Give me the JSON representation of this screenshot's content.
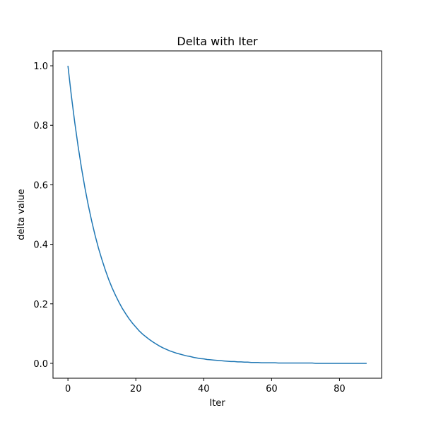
{
  "chart_data": {
    "type": "line",
    "title": "Delta with Iter",
    "xlabel": "Iter",
    "ylabel": "delta value",
    "x": [
      0,
      1,
      2,
      3,
      4,
      5,
      6,
      7,
      8,
      9,
      10,
      11,
      12,
      13,
      14,
      15,
      16,
      17,
      18,
      19,
      20,
      21,
      22,
      23,
      24,
      25,
      26,
      27,
      28,
      29,
      30,
      31,
      32,
      33,
      34,
      35,
      36,
      37,
      38,
      39,
      40,
      41,
      42,
      43,
      44,
      45,
      46,
      47,
      48,
      49,
      50,
      51,
      52,
      53,
      54,
      55,
      56,
      57,
      58,
      59,
      60,
      61,
      62,
      63,
      64,
      65,
      66,
      67,
      68,
      69,
      70,
      71,
      72,
      73,
      74,
      75,
      76,
      77,
      78,
      79,
      80,
      81,
      82,
      83,
      84,
      85,
      86,
      87,
      88
    ],
    "series": [
      {
        "color": "#1f77b4",
        "values": [
          1,
          0.9,
          0.81,
          0.729,
          0.656,
          0.59,
          0.531,
          0.478,
          0.43,
          0.387,
          0.349,
          0.314,
          0.282,
          0.254,
          0.229,
          0.206,
          0.185,
          0.167,
          0.15,
          0.135,
          0.122,
          0.109,
          0.098,
          0.089,
          0.08,
          0.072,
          0.065,
          0.058,
          0.052,
          0.047,
          0.042,
          0.038,
          0.034,
          0.031,
          0.028,
          0.025,
          0.023,
          0.02,
          0.018,
          0.016,
          0.015,
          0.013,
          0.012,
          0.011,
          0.01,
          0.009,
          0.008,
          0.007,
          0.006,
          0.006,
          0.005,
          0.005,
          0.004,
          0.004,
          0.003,
          0.003,
          0.003,
          0.002,
          0.002,
          0.002,
          0.002,
          0.002,
          0.001,
          0.001,
          0.001,
          0.001,
          0.001,
          0.001,
          0.001,
          0.001,
          0.001,
          0.001,
          0.001,
          0,
          0,
          0,
          0,
          0,
          0,
          0,
          0,
          0,
          0,
          0,
          0,
          0,
          0,
          0,
          0
        ]
      }
    ],
    "xlim": [
      -4.4,
      92.4
    ],
    "xticks": [
      0,
      20,
      40,
      60,
      80
    ],
    "ylim": [
      -0.05,
      1.05
    ],
    "yticks": [
      {
        "value": 0,
        "label": "0.0"
      },
      0.2,
      0.4,
      0.6,
      0.8,
      {
        "value": 1,
        "label": "1.0"
      }
    ]
  }
}
